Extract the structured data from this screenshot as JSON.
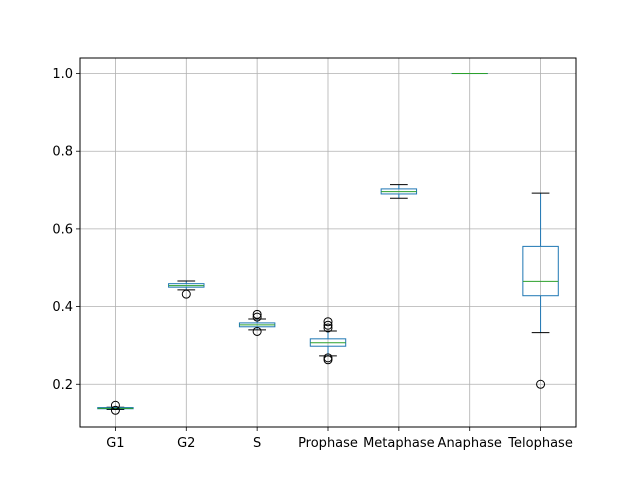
{
  "chart_data": {
    "type": "box",
    "categories": [
      "G1",
      "G2",
      "S",
      "Prophase",
      "Metaphase",
      "Anaphase",
      "Telophase"
    ],
    "ylim": [
      0.09,
      1.04
    ],
    "yticks": [
      0.2,
      0.4,
      0.6,
      0.8,
      1.0
    ],
    "ytick_labels": [
      "0.2",
      "0.4",
      "0.6",
      "0.8",
      "1.0"
    ],
    "grid": true,
    "boxes": [
      {
        "category": "G1",
        "whisker_low": 0.135,
        "q1": 0.137,
        "median": 0.138,
        "q3": 0.14,
        "whisker_high": 0.141,
        "outliers": [
          0.133,
          0.146
        ]
      },
      {
        "category": "G2",
        "whisker_low": 0.443,
        "q1": 0.45,
        "median": 0.454,
        "q3": 0.459,
        "whisker_high": 0.466,
        "outliers": [
          0.432
        ]
      },
      {
        "category": "S",
        "whisker_low": 0.34,
        "q1": 0.348,
        "median": 0.353,
        "q3": 0.358,
        "whisker_high": 0.368,
        "outliers": [
          0.336,
          0.373,
          0.38
        ]
      },
      {
        "category": "Prophase",
        "whisker_low": 0.273,
        "q1": 0.298,
        "median": 0.307,
        "q3": 0.317,
        "whisker_high": 0.337,
        "outliers": [
          0.263,
          0.268,
          0.345,
          0.352,
          0.361
        ]
      },
      {
        "category": "Metaphase",
        "whisker_low": 0.679,
        "q1": 0.69,
        "median": 0.696,
        "q3": 0.703,
        "whisker_high": 0.714,
        "outliers": []
      },
      {
        "category": "Anaphase",
        "whisker_low": 1.0,
        "q1": 1.0,
        "median": 1.0,
        "q3": 1.0,
        "whisker_high": 1.0,
        "outliers": []
      },
      {
        "category": "Telophase",
        "whisker_low": 0.333,
        "q1": 0.428,
        "median": 0.465,
        "q3": 0.555,
        "whisker_high": 0.692,
        "outliers": [
          0.2
        ]
      }
    ],
    "colors": {
      "box": "#1f77b4",
      "median": "#2ca02c",
      "whisker": "#000000",
      "grid": "#b0b0b0",
      "axes": "#000000"
    }
  }
}
